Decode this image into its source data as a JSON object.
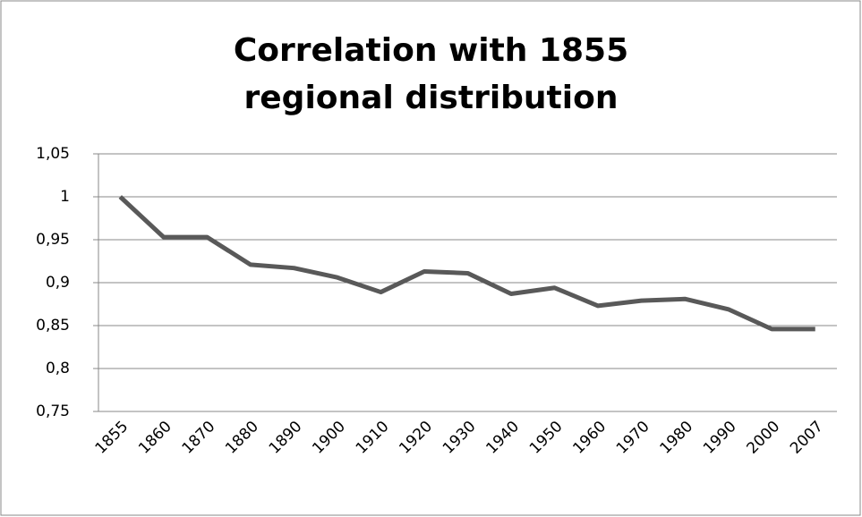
{
  "chart_data": {
    "type": "line",
    "title": "Correlation with 1855 regional distribution",
    "categories": [
      "1855",
      "1860",
      "1870",
      "1880",
      "1890",
      "1900",
      "1910",
      "1920",
      "1930",
      "1940",
      "1950",
      "1960",
      "1970",
      "1980",
      "1990",
      "2000",
      "2007"
    ],
    "series": [
      {
        "color": "#595959",
        "values": [
          1.0,
          0.953,
          0.953,
          0.921,
          0.917,
          0.906,
          0.889,
          0.913,
          0.911,
          0.887,
          0.894,
          0.873,
          0.879,
          0.881,
          0.869,
          0.846,
          0.846
        ]
      }
    ],
    "ylim": [
      0.75,
      1.05
    ],
    "yticks": [
      {
        "value": 0.75,
        "label": "0,75"
      },
      {
        "value": 0.8,
        "label": "0,8"
      },
      {
        "value": 0.85,
        "label": "0,85"
      },
      {
        "value": 0.9,
        "label": "0,9"
      },
      {
        "value": 0.95,
        "label": "0,95"
      },
      1,
      {
        "value": 1.05,
        "label": "1,05"
      }
    ],
    "grid": true
  }
}
